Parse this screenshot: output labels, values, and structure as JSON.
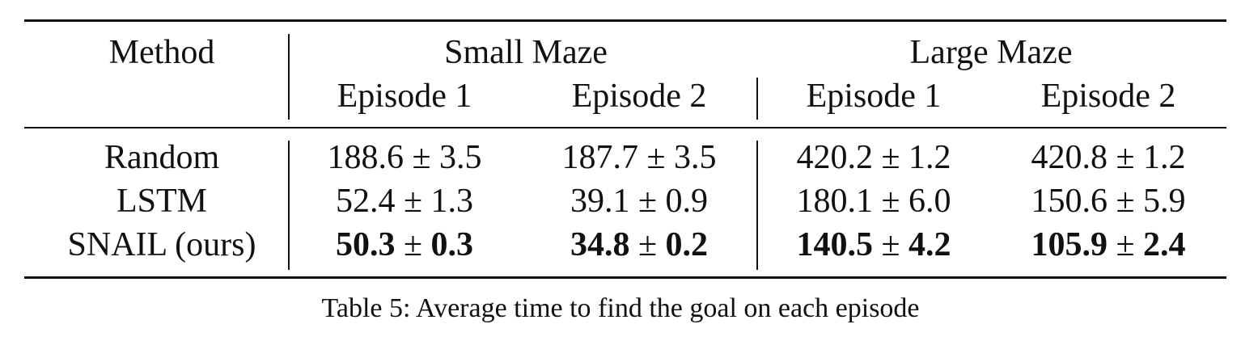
{
  "table": {
    "method_header": "Method",
    "group_headers": [
      "Small Maze",
      "Large Maze"
    ],
    "sub_headers": [
      "Episode 1",
      "Episode 2",
      "Episode 1",
      "Episode 2"
    ],
    "rows": [
      {
        "method": "Random",
        "best": false,
        "cells": [
          {
            "mean": "188.6",
            "pm": "±",
            "std": "3.5"
          },
          {
            "mean": "187.7",
            "pm": "±",
            "std": "3.5"
          },
          {
            "mean": "420.2",
            "pm": "±",
            "std": "1.2"
          },
          {
            "mean": "420.8",
            "pm": "±",
            "std": "1.2"
          }
        ]
      },
      {
        "method": "LSTM",
        "best": false,
        "cells": [
          {
            "mean": "52.4",
            "pm": "±",
            "std": "1.3"
          },
          {
            "mean": "39.1",
            "pm": "±",
            "std": "0.9"
          },
          {
            "mean": "180.1",
            "pm": "±",
            "std": "6.0"
          },
          {
            "mean": "150.6",
            "pm": "±",
            "std": "5.9"
          }
        ]
      },
      {
        "method": "SNAIL (ours)",
        "best": true,
        "cells": [
          {
            "mean": "50.3",
            "pm": "±",
            "std": "0.3"
          },
          {
            "mean": "34.8",
            "pm": "±",
            "std": "0.2"
          },
          {
            "mean": "140.5",
            "pm": "±",
            "std": "4.2"
          },
          {
            "mean": "105.9",
            "pm": "±",
            "std": "2.4"
          }
        ]
      }
    ]
  },
  "caption": "Table 5:  Average time to find the goal on each episode"
}
